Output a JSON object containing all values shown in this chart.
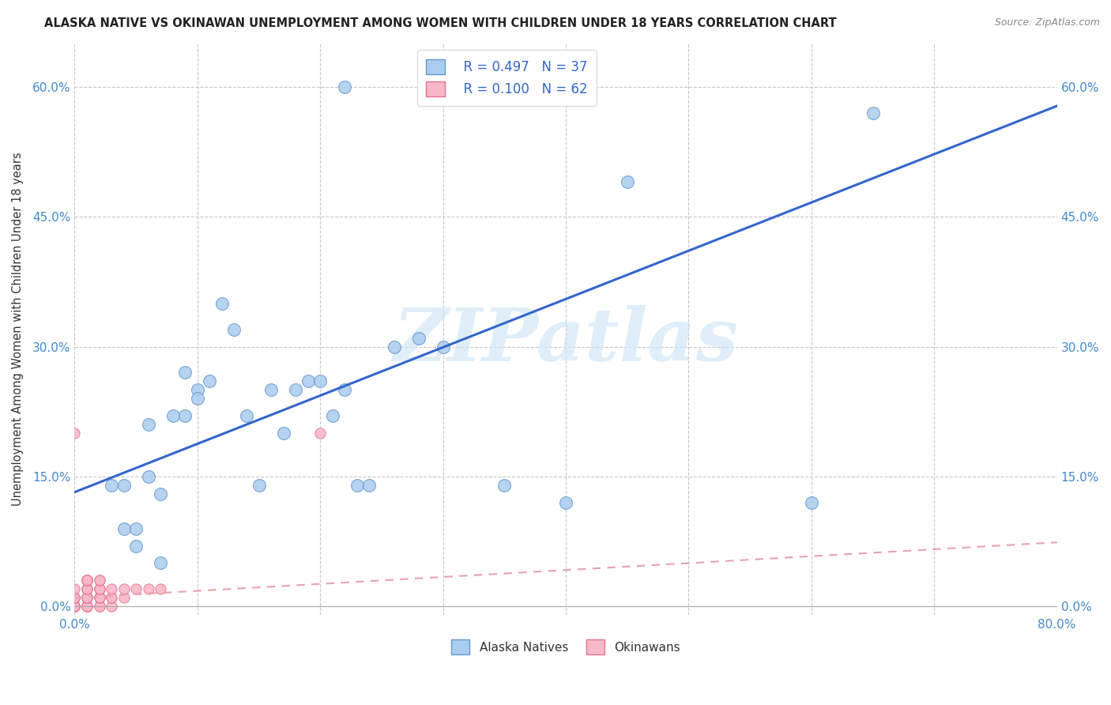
{
  "title": "ALASKA NATIVE VS OKINAWAN UNEMPLOYMENT AMONG WOMEN WITH CHILDREN UNDER 18 YEARS CORRELATION CHART",
  "source": "Source: ZipAtlas.com",
  "ylabel": "Unemployment Among Women with Children Under 18 years",
  "xlim": [
    0,
    0.8
  ],
  "ylim": [
    -0.01,
    0.65
  ],
  "xticks": [
    0.0,
    0.1,
    0.2,
    0.3,
    0.4,
    0.5,
    0.6,
    0.7,
    0.8
  ],
  "yticks": [
    0.0,
    0.15,
    0.3,
    0.45,
    0.6
  ],
  "ytick_labels": [
    "0.0%",
    "15.0%",
    "30.0%",
    "45.0%",
    "60.0%"
  ],
  "xtick_labels": [
    "0.0%",
    "",
    "",
    "",
    "",
    "",
    "",
    "",
    "80.0%"
  ],
  "background_color": "#ffffff",
  "grid_color": "#c8c8c8",
  "watermark": "ZIPatlas",
  "legend_R1": "0.497",
  "legend_N1": "37",
  "legend_R2": "0.100",
  "legend_N2": "62",
  "alaska_color": "#aaccee",
  "alaska_edge_color": "#6699cc",
  "okinawa_color": "#f8b8c8",
  "okinawa_edge_color": "#e87090",
  "line1_color": "#3366cc",
  "line2_color": "#e8a0b0",
  "tick_color": "#4488cc",
  "alaska_scatter_x": [
    0.04,
    0.05,
    0.06,
    0.07,
    0.08,
    0.09,
    0.09,
    0.1,
    0.1,
    0.11,
    0.12,
    0.13,
    0.14,
    0.15,
    0.16,
    0.17,
    0.18,
    0.19,
    0.2,
    0.21,
    0.22,
    0.23,
    0.24,
    0.26,
    0.28,
    0.3,
    0.35,
    0.4,
    0.45,
    0.6,
    0.65,
    0.03,
    0.04,
    0.05,
    0.06,
    0.07,
    0.22
  ],
  "alaska_scatter_y": [
    0.09,
    0.09,
    0.21,
    0.13,
    0.22,
    0.22,
    0.27,
    0.25,
    0.24,
    0.26,
    0.35,
    0.32,
    0.22,
    0.14,
    0.25,
    0.2,
    0.25,
    0.26,
    0.26,
    0.22,
    0.25,
    0.14,
    0.14,
    0.3,
    0.31,
    0.3,
    0.14,
    0.12,
    0.49,
    0.12,
    0.57,
    0.14,
    0.14,
    0.07,
    0.15,
    0.05,
    0.6
  ],
  "okinawa_scatter_x": [
    0.0,
    0.0,
    0.0,
    0.0,
    0.0,
    0.0,
    0.0,
    0.0,
    0.0,
    0.0,
    0.0,
    0.0,
    0.0,
    0.0,
    0.0,
    0.0,
    0.0,
    0.0,
    0.0,
    0.0,
    0.01,
    0.01,
    0.01,
    0.01,
    0.01,
    0.01,
    0.01,
    0.01,
    0.01,
    0.01,
    0.01,
    0.01,
    0.01,
    0.01,
    0.01,
    0.01,
    0.01,
    0.01,
    0.01,
    0.01,
    0.02,
    0.02,
    0.02,
    0.02,
    0.02,
    0.02,
    0.02,
    0.02,
    0.02,
    0.02,
    0.02,
    0.03,
    0.03,
    0.03,
    0.03,
    0.04,
    0.04,
    0.05,
    0.06,
    0.07,
    0.2,
    0.0
  ],
  "okinawa_scatter_y": [
    0.0,
    0.0,
    0.0,
    0.0,
    0.0,
    0.0,
    0.0,
    0.0,
    0.0,
    0.0,
    0.0,
    0.0,
    0.0,
    0.0,
    0.01,
    0.01,
    0.01,
    0.01,
    0.01,
    0.02,
    0.0,
    0.0,
    0.0,
    0.0,
    0.0,
    0.0,
    0.01,
    0.01,
    0.01,
    0.01,
    0.02,
    0.02,
    0.02,
    0.02,
    0.03,
    0.03,
    0.03,
    0.03,
    0.03,
    0.03,
    0.0,
    0.0,
    0.01,
    0.01,
    0.01,
    0.02,
    0.02,
    0.02,
    0.02,
    0.03,
    0.03,
    0.0,
    0.01,
    0.01,
    0.02,
    0.01,
    0.02,
    0.02,
    0.02,
    0.02,
    0.2,
    0.2
  ],
  "line1_slope": 0.5575,
  "line1_intercept": 0.132,
  "line2_slope": 0.08,
  "line2_intercept": 0.01
}
